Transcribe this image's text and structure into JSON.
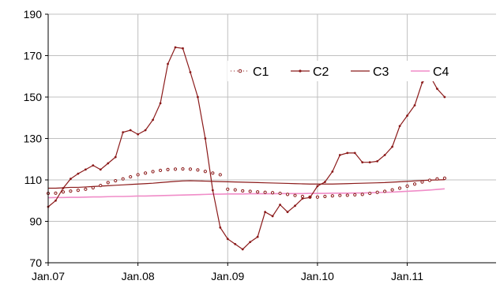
{
  "chart_data": {
    "type": "line",
    "x_labels": [
      "Jan.07",
      "Jan.08",
      "Jan.09",
      "Jan.10",
      "Jan.11"
    ],
    "ylim": [
      70,
      190
    ],
    "yticks": [
      70,
      90,
      110,
      130,
      150,
      170,
      190
    ],
    "grid": true,
    "legend_position": "top-right",
    "series": [
      {
        "name": "C1",
        "color": "#8b1a1a",
        "marker": "circle-open",
        "start": "2007-01",
        "values": [
          103.5,
          103.6,
          104.2,
          104.6,
          105,
          105.5,
          106.2,
          107.3,
          108.7,
          109.6,
          110.5,
          111.5,
          112.5,
          113.3,
          114,
          114.6,
          115,
          115.2,
          115.3,
          115.2,
          114.8,
          114.1,
          113.3,
          112.5,
          105.5,
          105.2,
          104.7,
          104.5,
          104.2,
          104,
          103.8,
          103.5,
          103,
          102.5,
          102,
          101.7,
          101.7,
          102,
          102.3,
          102.5,
          102.6,
          102.8,
          103,
          103.5,
          104,
          104.5,
          105.2,
          106,
          107,
          108,
          109,
          109.8,
          110.5,
          110.8
        ]
      },
      {
        "name": "C2",
        "color": "#8b1a1a",
        "marker": "dot",
        "start": "2007-01",
        "values": [
          97,
          100,
          106,
          110.5,
          113,
          115,
          117,
          115,
          118,
          121,
          133,
          134,
          132,
          134,
          139,
          147,
          166,
          174,
          173.5,
          162,
          150,
          130,
          105,
          87,
          81.5,
          79,
          76.5,
          80,
          82.5,
          94.5,
          92.5,
          98,
          94.5,
          97.5,
          101,
          101.5,
          107,
          109,
          114,
          122,
          123,
          123,
          118.5,
          118.5,
          119,
          122,
          126,
          136,
          141,
          146,
          157,
          160.5,
          154,
          150
        ]
      },
      {
        "name": "C3",
        "color": "#8b1a1a",
        "marker": "none",
        "start": "2007-01",
        "values": [
          106,
          106,
          106.2,
          106.4,
          106.4,
          106.6,
          106.8,
          107,
          107.2,
          107.4,
          107.6,
          107.8,
          108,
          108.2,
          108.4,
          108.7,
          109,
          109.3,
          109.5,
          109.6,
          109.5,
          109.4,
          109.3,
          109.2,
          109.1,
          109,
          108.9,
          108.8,
          108.7,
          108.6,
          108.5,
          108.4,
          108.3,
          108.2,
          108.1,
          108,
          108,
          108,
          108,
          108.1,
          108.2,
          108.3,
          108.4,
          108.5,
          108.6,
          108.7,
          108.9,
          109.1,
          109.3,
          109.5,
          109.7,
          109.9,
          110,
          110.1
        ]
      },
      {
        "name": "C4",
        "color": "#f08cc8",
        "marker": "none",
        "start": "2007-01",
        "values": [
          101.4,
          101.5,
          101.5,
          101.6,
          101.6,
          101.7,
          101.8,
          101.8,
          101.9,
          102,
          102,
          102.1,
          102.2,
          102.2,
          102.3,
          102.4,
          102.5,
          102.6,
          102.7,
          102.8,
          102.9,
          103,
          103.1,
          103.1,
          103.2,
          103.2,
          103.2,
          103.3,
          103.3,
          103.3,
          103.3,
          103.4,
          103.4,
          103.4,
          103.4,
          103.5,
          103.5,
          103.5,
          103.6,
          103.6,
          103.6,
          103.7,
          103.7,
          103.8,
          103.9,
          104,
          104.1,
          104.3,
          104.5,
          104.7,
          104.9,
          105.1,
          105.4,
          105.7
        ]
      }
    ]
  }
}
